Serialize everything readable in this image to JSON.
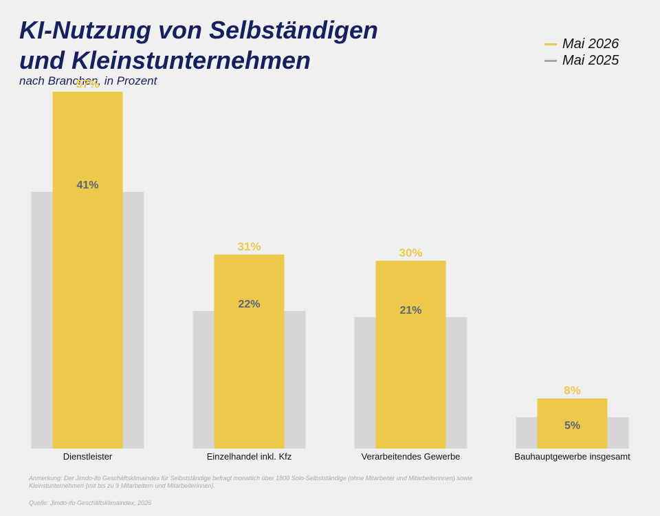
{
  "header": {
    "title_line1": "KI-Nutzung von Selbständigen",
    "title_line2": "und Kleinstunternehmen",
    "subtitle": "nach Branchen, in Prozent"
  },
  "legend": [
    {
      "label": "Mai 2026",
      "color": "#ecc94b"
    },
    {
      "label": "Mai 2025",
      "color": "#a6a6a6"
    }
  ],
  "footer": {
    "note": "Anmerkung: Der Jimdo-ifo Geschäftsklimaindex für Selbstständige befragt monatlich über 1800 Solo-Selbstständige (ohne Mitarbeiter und Mitarbeiterinnen) sowie Kleinstunternehmen (mit bis zu 9 Mitarbeitern und Mitarbeiterinnen).",
    "source": "Quelle: Jimdo-ifo Geschäftsklimaindex, 2026"
  },
  "chart_data": {
    "type": "bar",
    "title": "KI-Nutzung von Selbständigen und Kleinstunternehmen",
    "subtitle": "nach Branchen, in Prozent",
    "categories": [
      "Dienstleister",
      "Einzelhandel inkl. Kfz",
      "Verarbeitendes Gewerbe",
      "Bauhauptgewerbe insgesamt"
    ],
    "series": [
      {
        "name": "Mai 2026",
        "values": [
          57,
          31,
          30,
          8
        ],
        "labels": [
          "57%",
          "31%",
          "30%",
          "8%"
        ],
        "color": "#ecc94b"
      },
      {
        "name": "Mai 2025",
        "values": [
          41,
          22,
          21,
          5
        ],
        "labels": [
          "41%",
          "22%",
          "21%",
          "5%"
        ],
        "color": "#d6d6d6"
      }
    ],
    "ylim": [
      0,
      60
    ],
    "grid": false,
    "legend_position": "top-right",
    "label_colors": {
      "Mai 2026": "#ecc94b",
      "Mai 2025": "#5a6577"
    }
  }
}
